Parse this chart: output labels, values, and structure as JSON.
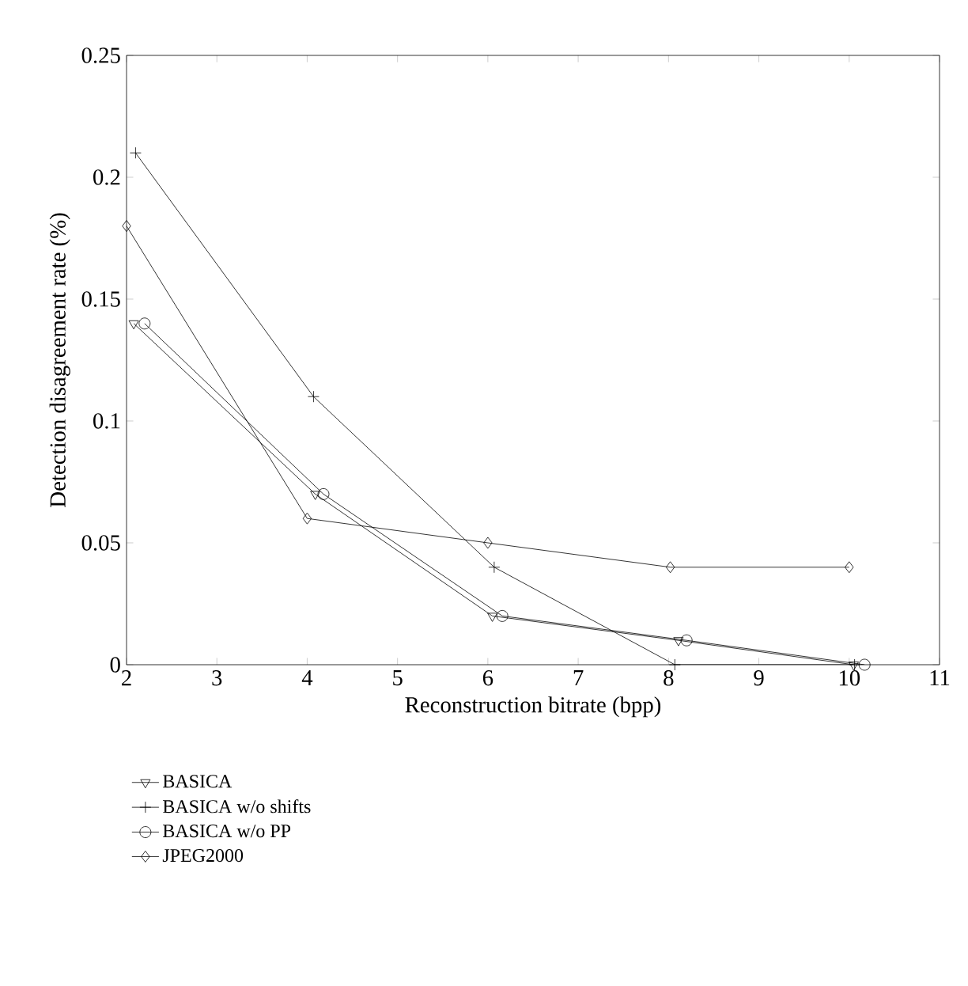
{
  "chart_data": {
    "type": "line",
    "xlabel": "Reconstruction bitrate (bpp)",
    "ylabel": "Detection disagreement rate (%)",
    "xlim": [
      2,
      11
    ],
    "xticks": [
      2,
      3,
      4,
      5,
      6,
      7,
      8,
      9,
      10,
      11
    ],
    "ylim": [
      0,
      0.25
    ],
    "yticks": [
      0,
      0.05,
      0.1,
      0.15,
      0.2,
      0.25
    ],
    "grid": false,
    "legend": "bottom left",
    "line_style": "solid",
    "series": [
      {
        "name": "BASICA",
        "color": "#000000",
        "marker": "triangle",
        "x": [
          2.08,
          4.09,
          6.05,
          8.11,
          10.05
        ],
        "values": [
          0.14,
          0.07,
          0.02,
          0.01,
          0
        ]
      },
      {
        "name": "BASICA w/o shifts",
        "color": "#000000",
        "marker": "cross",
        "x": [
          2.1,
          4.07,
          6.07,
          8.07,
          10.06
        ],
        "values": [
          0.21,
          0.11,
          0.04,
          0,
          0
        ]
      },
      {
        "name": "BASICA w/o PP",
        "color": "#000000",
        "marker": "circle",
        "x": [
          2.2,
          4.18,
          6.16,
          8.2,
          10.17
        ],
        "values": [
          0.14,
          0.07,
          0.02,
          0.01,
          0
        ]
      },
      {
        "name": "JPEG2000",
        "color": "#000000",
        "marker": "diamond",
        "x": [
          2,
          4,
          6,
          8.02,
          10
        ],
        "values": [
          0.18,
          0.06,
          0.05,
          0.04,
          0.04
        ]
      }
    ]
  }
}
